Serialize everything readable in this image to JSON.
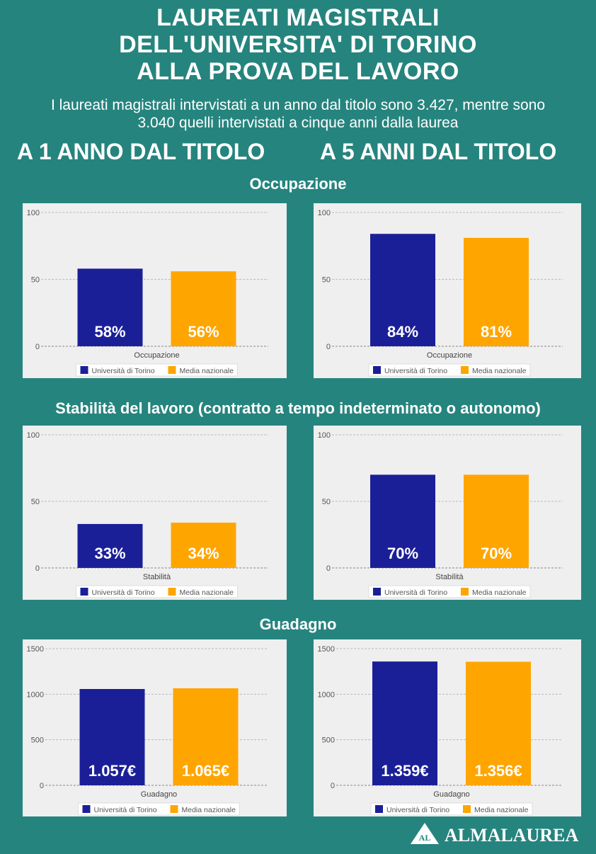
{
  "header": {
    "title_lines": [
      "LAUREATI MAGISTRALI",
      "DELL'UNIVERSITA' DI TORINO",
      "ALLA PROVA DEL LAVORO"
    ],
    "subtitle_lines": [
      "I laureati magistrali intervistati a un anno dal titolo sono 3.427, mentre sono",
      "3.040 quelli intervistati a cinque anni dalla laurea"
    ],
    "col_left": "A 1 ANNO DAL TITOLO",
    "col_right": "A 5 ANNI DAL TITOLO"
  },
  "sections": {
    "occupazione": "Occupazione",
    "stabilita": "Stabilità del lavoro (contratto a tempo indeterminato o autonomo)",
    "guadagno": "Guadagno"
  },
  "legend": {
    "torino": "Università di Torino",
    "nazionale": "Media nazionale"
  },
  "colors": {
    "background": "#26847e",
    "torino": "#1b1f97",
    "nazionale": "#ffa500",
    "panel": "#efefef"
  },
  "logo": {
    "mark": "AL",
    "text": "ALMALAUREA"
  },
  "chart_data": [
    {
      "type": "bar",
      "title": "",
      "xlabel": "Occupazione",
      "ylabel": "",
      "categories": [
        "Occupazione"
      ],
      "ylim": [
        0,
        100
      ],
      "yticks": [
        0,
        50,
        100
      ],
      "series": [
        {
          "name": "Università di Torino",
          "values": [
            58
          ],
          "label": "58%"
        },
        {
          "name": "Media nazionale",
          "values": [
            56
          ],
          "label": "56%"
        }
      ],
      "grid": true,
      "legend": "bottom"
    },
    {
      "type": "bar",
      "title": "",
      "xlabel": "Occupazione",
      "ylabel": "",
      "categories": [
        "Occupazione"
      ],
      "ylim": [
        0,
        100
      ],
      "yticks": [
        0,
        50,
        100
      ],
      "series": [
        {
          "name": "Università di Torino",
          "values": [
            84
          ],
          "label": "84%"
        },
        {
          "name": "Media nazionale",
          "values": [
            81
          ],
          "label": "81%"
        }
      ],
      "grid": true,
      "legend": "bottom"
    },
    {
      "type": "bar",
      "title": "",
      "xlabel": "Stabilità",
      "ylabel": "",
      "categories": [
        "Stabilità"
      ],
      "ylim": [
        0,
        100
      ],
      "yticks": [
        0,
        50,
        100
      ],
      "series": [
        {
          "name": "Università di Torino",
          "values": [
            33
          ],
          "label": "33%"
        },
        {
          "name": "Media nazionale",
          "values": [
            34
          ],
          "label": "34%"
        }
      ],
      "grid": true,
      "legend": "bottom"
    },
    {
      "type": "bar",
      "title": "",
      "xlabel": "Stabilità",
      "ylabel": "",
      "categories": [
        "Stabilità"
      ],
      "ylim": [
        0,
        100
      ],
      "yticks": [
        0,
        50,
        100
      ],
      "series": [
        {
          "name": "Università di Torino",
          "values": [
            70
          ],
          "label": "70%"
        },
        {
          "name": "Media nazionale",
          "values": [
            70
          ],
          "label": "70%"
        }
      ],
      "grid": true,
      "legend": "bottom"
    },
    {
      "type": "bar",
      "title": "",
      "xlabel": "Guadagno",
      "ylabel": "",
      "categories": [
        "Guadagno"
      ],
      "ylim": [
        0,
        1500
      ],
      "yticks": [
        0,
        500,
        1000,
        1500
      ],
      "series": [
        {
          "name": "Università di Torino",
          "values": [
            1057
          ],
          "label": "1.057€"
        },
        {
          "name": "Media nazionale",
          "values": [
            1065
          ],
          "label": "1.065€"
        }
      ],
      "grid": true,
      "legend": "bottom"
    },
    {
      "type": "bar",
      "title": "",
      "xlabel": "Guadagno",
      "ylabel": "",
      "categories": [
        "Guadagno"
      ],
      "ylim": [
        0,
        1500
      ],
      "yticks": [
        0,
        500,
        1000,
        1500
      ],
      "series": [
        {
          "name": "Università di Torino",
          "values": [
            1359
          ],
          "label": "1.359€"
        },
        {
          "name": "Media nazionale",
          "values": [
            1356
          ],
          "label": "1.356€"
        }
      ],
      "grid": true,
      "legend": "bottom"
    }
  ]
}
